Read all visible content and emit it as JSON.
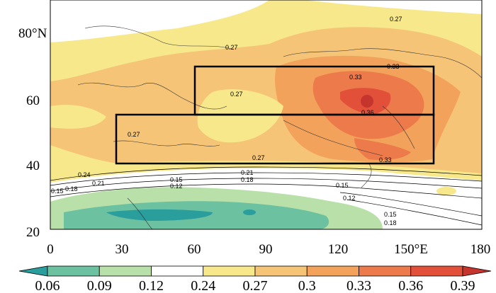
{
  "map": {
    "y_axis_labels": [
      "20",
      "40",
      "60",
      "80°N"
    ],
    "x_axis_labels": [
      "0",
      "30",
      "60",
      "90",
      "120",
      "150°E",
      "180"
    ],
    "contour_labels": [
      "0.27",
      "0.27",
      "0.27",
      "0.27",
      "0.33",
      "0.33",
      "0.33",
      "0.36",
      "0.27",
      "0.24",
      "0.21",
      "0.18",
      "0.15",
      "0.21",
      "0.18",
      "0.15",
      "0.12",
      "0.15",
      "0.12",
      "0.15",
      "0.18"
    ],
    "regions": [
      {
        "name": "north-box",
        "lon": [
          60,
          160
        ],
        "lat": [
          55,
          70
        ]
      },
      {
        "name": "south-box",
        "lon": [
          27,
          160
        ],
        "lat": [
          40,
          55
        ]
      }
    ]
  },
  "colorbar": {
    "labels": [
      "0.06",
      "0.09",
      "0.12",
      "0.24",
      "0.27",
      "0.3",
      "0.33",
      "0.36",
      "0.39"
    ],
    "colors": [
      "#2a9d9d",
      "#6cc1a0",
      "#b8e0a8",
      "#ffffff",
      "#f7e88c",
      "#f5c477",
      "#f2a25a",
      "#ec7a4a",
      "#e2503a",
      "#c6342e"
    ]
  }
}
